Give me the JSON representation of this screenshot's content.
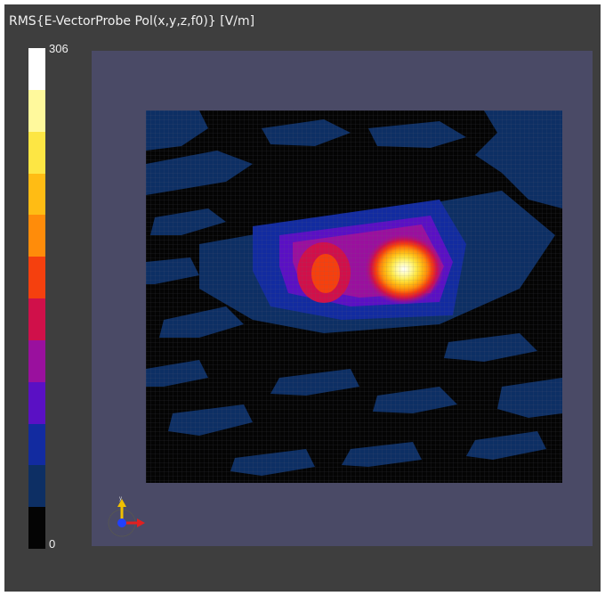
{
  "viewer": {
    "title": "RMS{E-VectorProbe Pol(x,y,z,f0)} [V/m]",
    "background_color": "#3e3e3e",
    "domain_color": "#4a4a66"
  },
  "colorbar": {
    "max_label": "306",
    "min_label": "0",
    "colors": [
      "#040404",
      "#0d2f64",
      "#122ba0",
      "#5a10c4",
      "#9a109e",
      "#d0104a",
      "#f5400e",
      "#ff8c0a",
      "#ffbc14",
      "#fde644",
      "#fff99c",
      "#ffffff"
    ]
  },
  "field_plot": {
    "background_level": "#040404",
    "hotspots": [
      {
        "name": "left-hotspot",
        "peak_color": "#f5400e"
      },
      {
        "name": "right-hotspot",
        "peak_color": "#ffffff"
      }
    ]
  },
  "axes_triad": {
    "icon": "axes-triad-icon",
    "x_color": "#e02020",
    "y_color": "#f0c000",
    "z_color": "#2040ff"
  }
}
